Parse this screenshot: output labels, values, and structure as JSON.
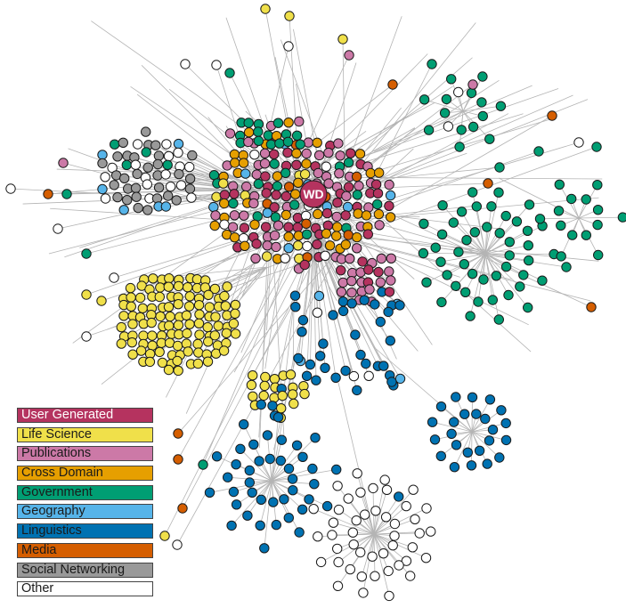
{
  "hub": {
    "label": "WD",
    "category": "user_generated"
  },
  "categories": [
    {
      "key": "user_generated",
      "label": "User Generated",
      "color": "#b5335f",
      "text_color": "#ffffff"
    },
    {
      "key": "life_science",
      "label": "Life Science",
      "color": "#f0e04a",
      "text_color": "#1a1a1a"
    },
    {
      "key": "publications",
      "label": "Publications",
      "color": "#cc79a7",
      "text_color": "#1a1a1a"
    },
    {
      "key": "cross_domain",
      "label": "Cross Domain",
      "color": "#e69f00",
      "text_color": "#1a1a1a"
    },
    {
      "key": "government",
      "label": "Government",
      "color": "#009e73",
      "text_color": "#1a1a1a"
    },
    {
      "key": "geography",
      "label": "Geography",
      "color": "#56b4e9",
      "text_color": "#1a1a1a"
    },
    {
      "key": "linguistics",
      "label": "Linguistics",
      "color": "#0072b2",
      "text_color": "#1a1a1a"
    },
    {
      "key": "media",
      "label": "Media",
      "color": "#d55e00",
      "text_color": "#1a1a1a"
    },
    {
      "key": "social_networking",
      "label": "Social Networking",
      "color": "#999999",
      "text_color": "#1a1a1a"
    },
    {
      "key": "other",
      "label": "Other",
      "color": "#ffffff",
      "text_color": "#1a1a1a"
    }
  ]
}
